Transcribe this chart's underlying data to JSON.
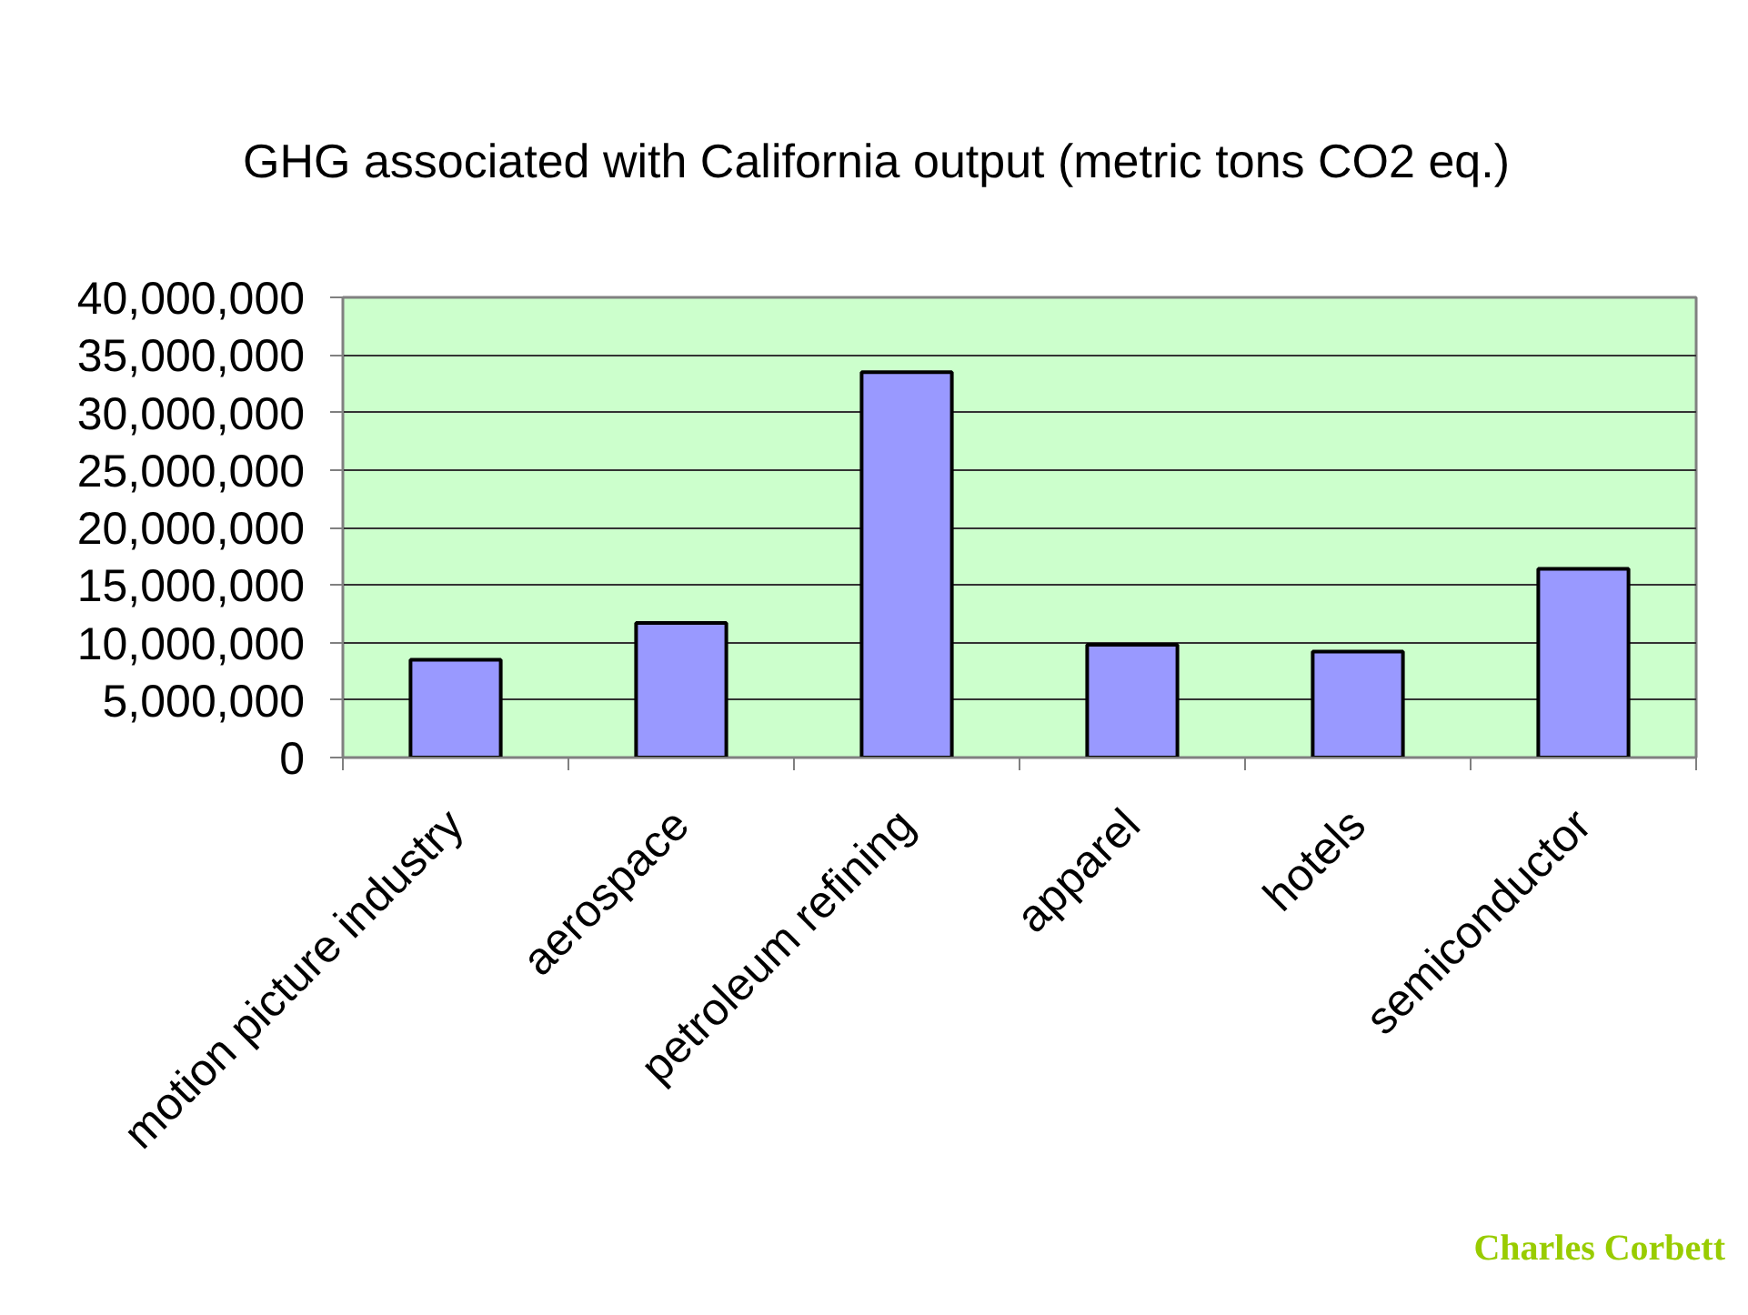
{
  "chart_data": {
    "type": "bar",
    "title": "GHG associated with California output (metric tons CO2 eq.)",
    "categories": [
      "motion picture industry",
      "aerospace",
      "petroleum refining",
      "apparel",
      "hotels",
      "semiconductor"
    ],
    "values": [
      8500000,
      11700000,
      33500000,
      9800000,
      9200000,
      16400000
    ],
    "color": "#9999ff",
    "ylim": [
      0,
      40000000
    ],
    "yticks": [
      {
        "value": 0,
        "label": "0"
      },
      {
        "value": 5000000,
        "label": "5,000,000"
      },
      {
        "value": 10000000,
        "label": "10,000,000"
      },
      {
        "value": 15000000,
        "label": "15,000,000"
      },
      {
        "value": 20000000,
        "label": "20,000,000"
      },
      {
        "value": 25000000,
        "label": "25,000,000"
      },
      {
        "value": 30000000,
        "label": "30,000,000"
      },
      {
        "value": 35000000,
        "label": "35,000,000"
      },
      {
        "value": 40000000,
        "label": "40,000,000"
      }
    ],
    "grid": "y",
    "annotations": [
      "Charles Corbett"
    ]
  }
}
